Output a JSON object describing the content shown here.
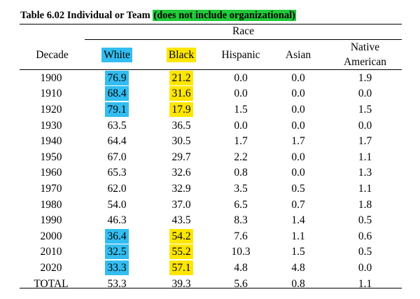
{
  "title": {
    "prefix": "Table 6.02  Individual or Team ",
    "highlight": "(does not include organizational)",
    "highlight_color": "#22c93a"
  },
  "race_header": "Race",
  "columns": [
    "Decade",
    "White",
    "Black",
    "Hispanic",
    "Asian",
    "Native American"
  ],
  "highlight_colors": {
    "blue": "#33bdf0",
    "yellow": "#ffe600"
  },
  "header_highlight": {
    "White": "blue",
    "Black": "yellow"
  },
  "rows": [
    {
      "decade": "1900",
      "values": [
        "76.9",
        "21.2",
        "0.0",
        "0.0",
        "1.9"
      ],
      "hl": [
        "blue",
        "yellow",
        "",
        "",
        ""
      ]
    },
    {
      "decade": "1910",
      "values": [
        "68.4",
        "31.6",
        "0.0",
        "0.0",
        "0.0"
      ],
      "hl": [
        "blue",
        "yellow",
        "",
        "",
        ""
      ]
    },
    {
      "decade": "1920",
      "values": [
        "79.1",
        "17.9",
        "1.5",
        "0.0",
        "1.5"
      ],
      "hl": [
        "blue",
        "yellow",
        "",
        "",
        ""
      ]
    },
    {
      "decade": "1930",
      "values": [
        "63.5",
        "36.5",
        "0.0",
        "0.0",
        "0.0"
      ],
      "hl": [
        "",
        "",
        "",
        "",
        ""
      ]
    },
    {
      "decade": "1940",
      "values": [
        "64.4",
        "30.5",
        "1.7",
        "1.7",
        "1.7"
      ],
      "hl": [
        "",
        "",
        "",
        "",
        ""
      ]
    },
    {
      "decade": "1950",
      "values": [
        "67.0",
        "29.7",
        "2.2",
        "0.0",
        "1.1"
      ],
      "hl": [
        "",
        "",
        "",
        "",
        ""
      ]
    },
    {
      "decade": "1960",
      "values": [
        "65.3",
        "32.6",
        "0.8",
        "0.0",
        "1.3"
      ],
      "hl": [
        "",
        "",
        "",
        "",
        ""
      ]
    },
    {
      "decade": "1970",
      "values": [
        "62.0",
        "32.9",
        "3.5",
        "0.5",
        "1.1"
      ],
      "hl": [
        "",
        "",
        "",
        "",
        ""
      ]
    },
    {
      "decade": "1980",
      "values": [
        "54.0",
        "37.0",
        "6.5",
        "0.7",
        "1.8"
      ],
      "hl": [
        "",
        "",
        "",
        "",
        ""
      ]
    },
    {
      "decade": "1990",
      "values": [
        "46.3",
        "43.5",
        "8.3",
        "1.4",
        "0.5"
      ],
      "hl": [
        "",
        "",
        "",
        "",
        ""
      ]
    },
    {
      "decade": "2000",
      "values": [
        "36.4",
        "54.2",
        "7.6",
        "1.1",
        "0.6"
      ],
      "hl": [
        "blue",
        "yellow",
        "",
        "",
        ""
      ]
    },
    {
      "decade": "2010",
      "values": [
        "32.5",
        "55.2",
        "10.3",
        "1.5",
        "0.5"
      ],
      "hl": [
        "blue",
        "yellow",
        "",
        "",
        ""
      ]
    },
    {
      "decade": "2020",
      "values": [
        "33.3",
        "57.1",
        "4.8",
        "4.8",
        "0.0"
      ],
      "hl": [
        "blue",
        "yellow",
        "",
        "",
        ""
      ]
    },
    {
      "decade": "TOTAL",
      "values": [
        "53.3",
        "39.3",
        "5.6",
        "0.8",
        "1.1"
      ],
      "hl": [
        "",
        "",
        "",
        "",
        ""
      ]
    }
  ]
}
